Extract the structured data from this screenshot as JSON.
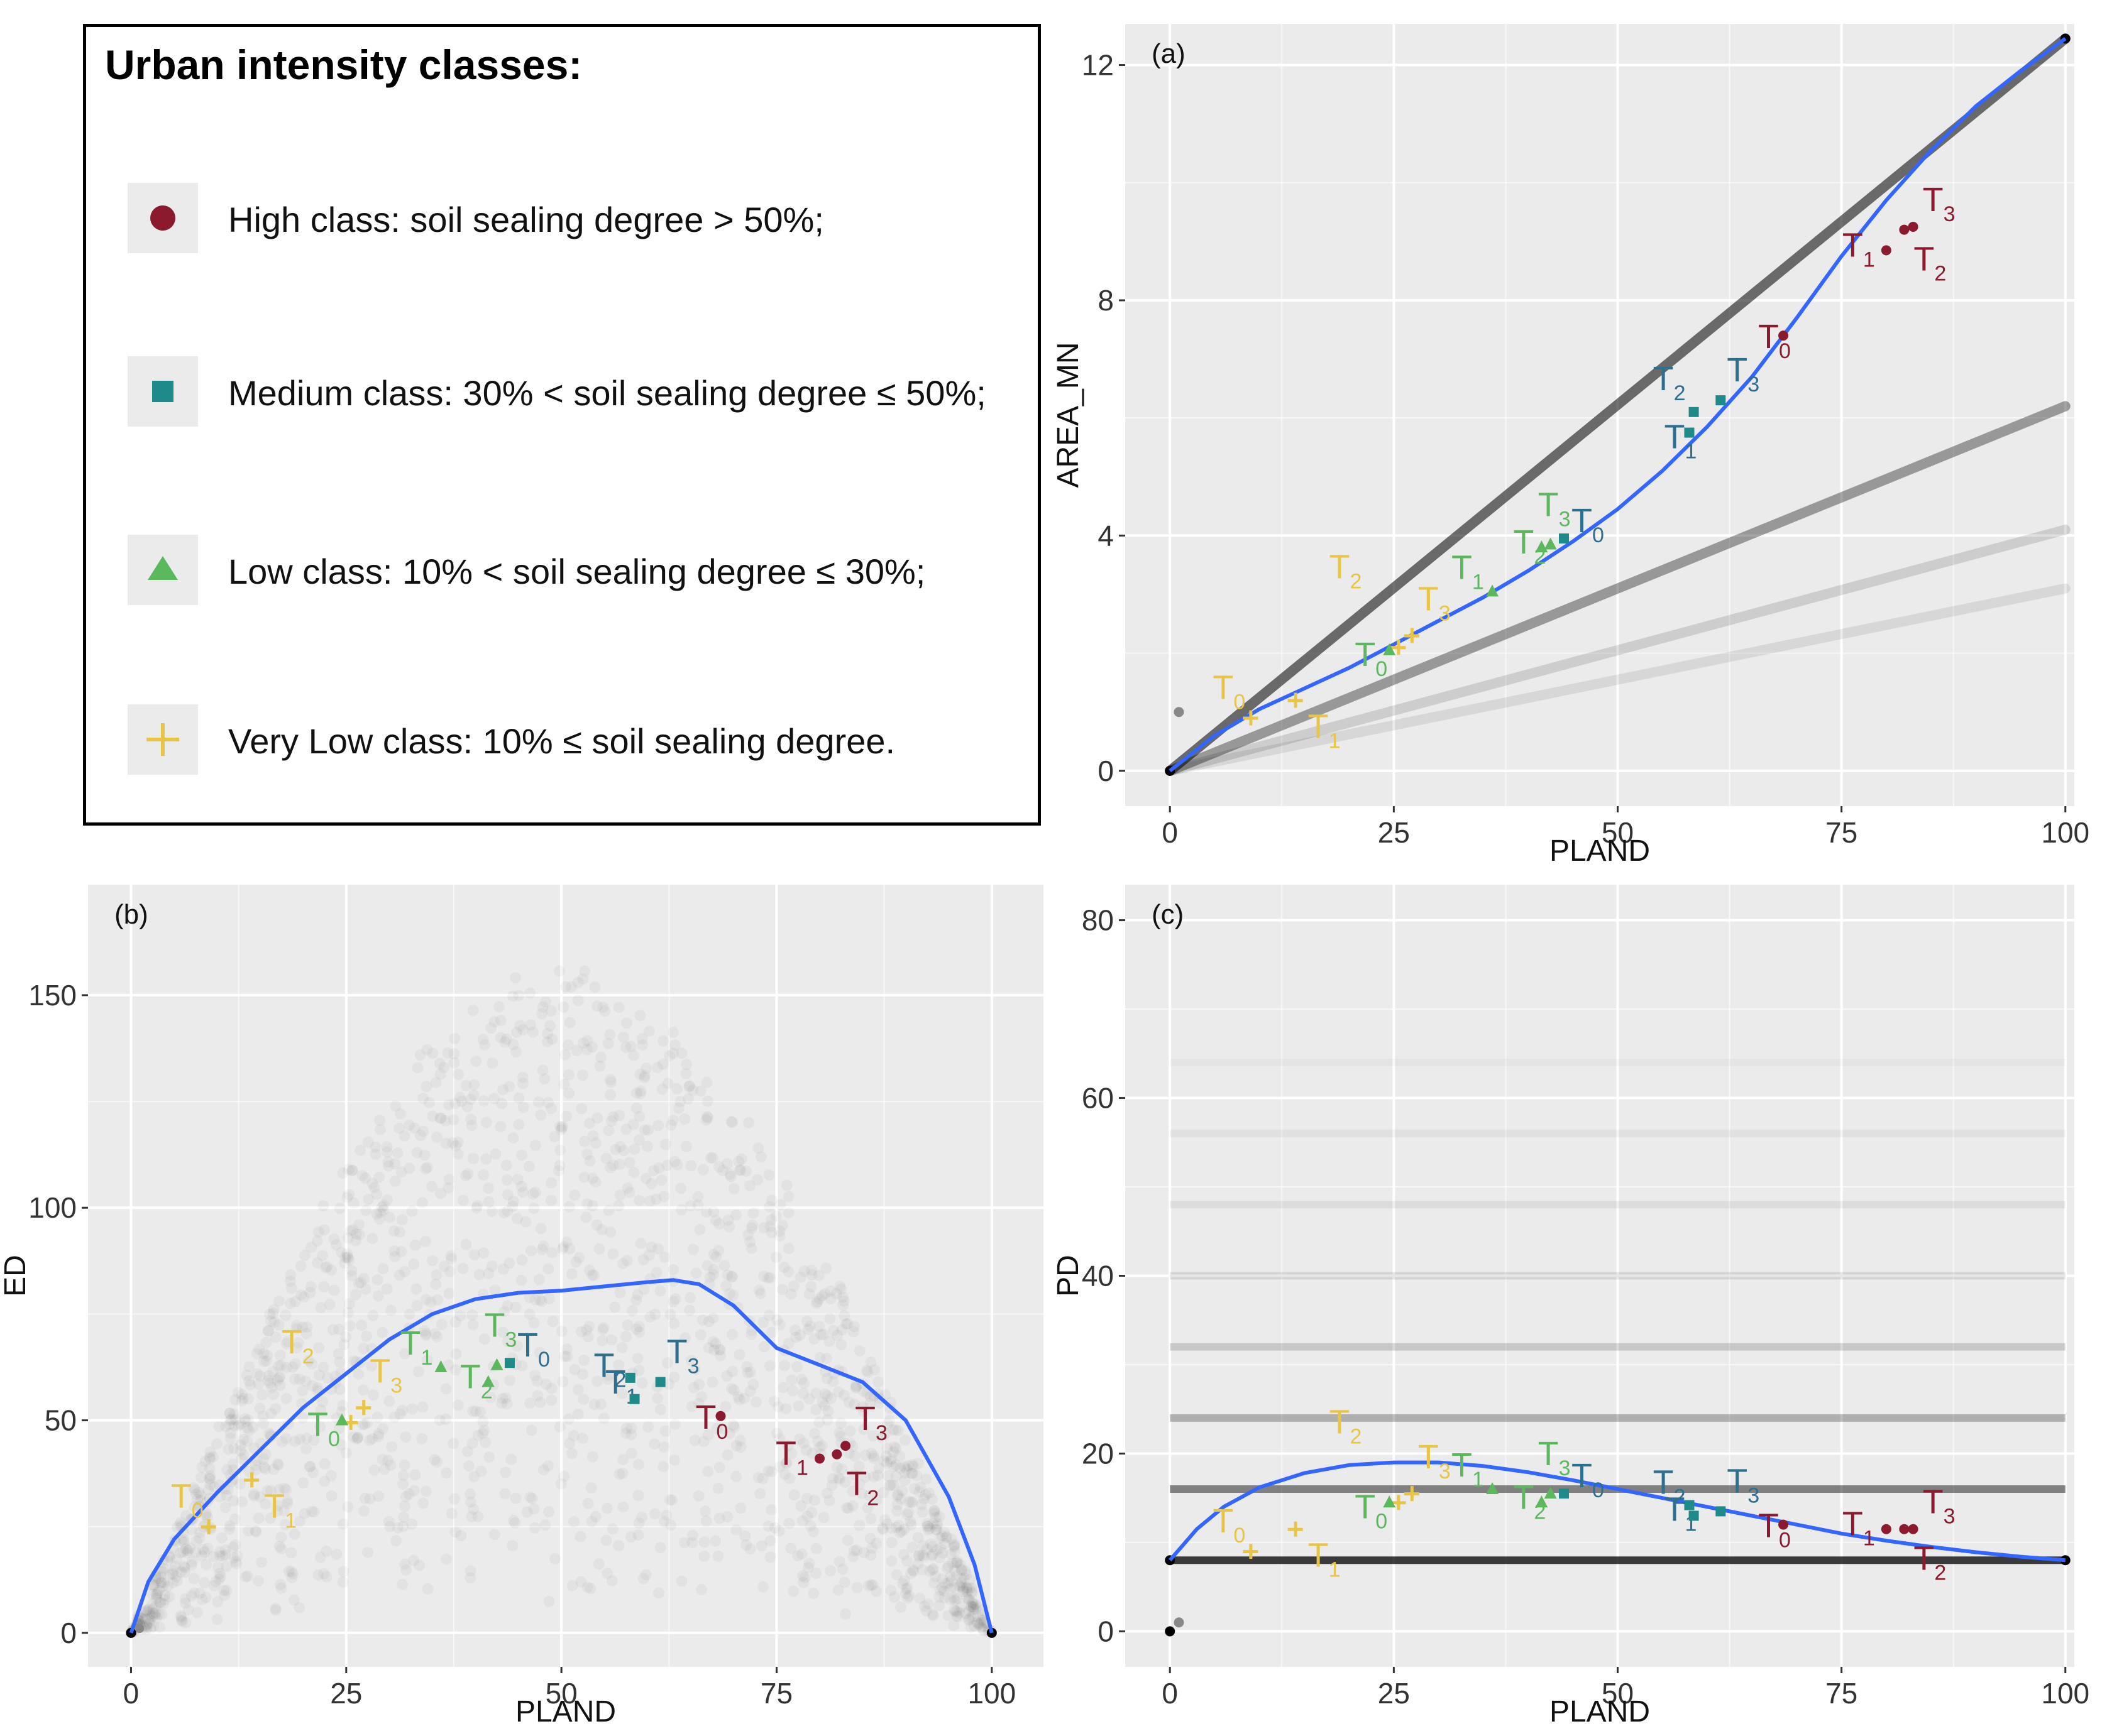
{
  "legend": {
    "title": "Urban intensity classes:",
    "items": [
      {
        "key": "high",
        "label": "High class: soil sealing degree > 50%;",
        "color": "#8B1A2E",
        "shape": "circle-icon"
      },
      {
        "key": "medium",
        "label": "Medium class: 30% <  soil sealing degree ≤ 50%;",
        "color": "#1F8A8A",
        "shape": "square-icon"
      },
      {
        "key": "low",
        "label": "Low class: 10% < soil sealing degree ≤ 30%;",
        "color": "#5CB85C",
        "shape": "triangle-icon"
      },
      {
        "key": "verylow",
        "label": "Very Low class: 10% ≤ soil sealing degree.",
        "color": "#E8C547",
        "shape": "plus-icon"
      }
    ]
  },
  "colors": {
    "panel_bg": "#ebebeb",
    "grid": "#ffffff",
    "fit_line": "#3366FF",
    "scatter": "#000000",
    "label_high": "#8B1A2E",
    "label_medium": "#2E6E8E",
    "label_low": "#5CB85C",
    "label_verylow": "#E8C547"
  },
  "chart_data": [
    {
      "id": "a",
      "tag": "(a)",
      "type": "scatter",
      "xlabel": "PLAND",
      "ylabel": "AREA_MN",
      "xlim": [
        -5,
        101
      ],
      "ylim": [
        -0.6,
        12.7
      ],
      "xticks": [
        0,
        25,
        50,
        75,
        100
      ],
      "yticks": [
        0,
        4,
        8,
        12
      ],
      "xtick_labels": [
        "0",
        "25",
        "50",
        "75",
        "100"
      ],
      "ytick_labels": [
        "0",
        "4",
        "8",
        "12"
      ],
      "fit_line": [
        [
          0,
          0
        ],
        [
          5,
          0.6
        ],
        [
          10,
          1.05
        ],
        [
          15,
          1.4
        ],
        [
          20,
          1.75
        ],
        [
          25,
          2.15
        ],
        [
          30,
          2.55
        ],
        [
          35,
          2.95
        ],
        [
          40,
          3.4
        ],
        [
          45,
          3.9
        ],
        [
          50,
          4.45
        ],
        [
          55,
          5.1
        ],
        [
          60,
          5.85
        ],
        [
          65,
          6.7
        ],
        [
          70,
          7.7
        ],
        [
          75,
          8.75
        ],
        [
          80,
          9.7
        ],
        [
          85,
          10.55
        ],
        [
          90,
          11.3
        ],
        [
          95,
          11.9
        ],
        [
          100,
          12.45
        ]
      ],
      "background_lines": [
        {
          "slope": 0.1245,
          "opacity": 0.55
        },
        {
          "slope": 0.062,
          "opacity": 0.35
        },
        {
          "slope": 0.041,
          "opacity": 0.12
        },
        {
          "slope": 0.031,
          "opacity": 0.08
        }
      ],
      "points": [
        {
          "cls": "verylow",
          "x": 9,
          "y": 0.9,
          "label": "T",
          "sub": "0"
        },
        {
          "cls": "verylow",
          "x": 14,
          "y": 1.2,
          "label": "T",
          "sub": "1"
        },
        {
          "cls": "verylow",
          "x": 25.5,
          "y": 2.1,
          "label": "T",
          "sub": "2"
        },
        {
          "cls": "verylow",
          "x": 27,
          "y": 2.3,
          "label": "T",
          "sub": "3"
        },
        {
          "cls": "low",
          "x": 24.5,
          "y": 2.05,
          "label": "T",
          "sub": "0"
        },
        {
          "cls": "low",
          "x": 36,
          "y": 3.05,
          "label": "T",
          "sub": "1"
        },
        {
          "cls": "low",
          "x": 41.5,
          "y": 3.8,
          "label": "T",
          "sub": "2"
        },
        {
          "cls": "low",
          "x": 42.5,
          "y": 3.85,
          "label": "T",
          "sub": "3"
        },
        {
          "cls": "medium",
          "x": 44,
          "y": 3.95,
          "label": "T",
          "sub": "0"
        },
        {
          "cls": "medium",
          "x": 58,
          "y": 5.75,
          "label": "T",
          "sub": "1"
        },
        {
          "cls": "medium",
          "x": 58.5,
          "y": 6.1,
          "label": "T",
          "sub": "2"
        },
        {
          "cls": "medium",
          "x": 61.5,
          "y": 6.3,
          "label": "T",
          "sub": "3"
        },
        {
          "cls": "high",
          "x": 68.5,
          "y": 7.4,
          "label": "T",
          "sub": "0"
        },
        {
          "cls": "high",
          "x": 80,
          "y": 8.85,
          "label": "T",
          "sub": "1"
        },
        {
          "cls": "high",
          "x": 82,
          "y": 9.2,
          "label": "T",
          "sub": "2"
        },
        {
          "cls": "high",
          "x": 83,
          "y": 9.25,
          "label": "T",
          "sub": "3"
        }
      ]
    },
    {
      "id": "b",
      "tag": "(b)",
      "type": "scatter",
      "xlabel": "PLAND",
      "ylabel": "ED",
      "xlim": [
        -5,
        106
      ],
      "ylim": [
        -8,
        176
      ],
      "xticks": [
        0,
        25,
        50,
        75,
        100
      ],
      "yticks": [
        0,
        50,
        100,
        150
      ],
      "xtick_labels": [
        "0",
        "25",
        "50",
        "75",
        "100"
      ],
      "ytick_labels": [
        "0",
        "50",
        "100",
        "150"
      ],
      "fit_line": [
        [
          0,
          0
        ],
        [
          2,
          12
        ],
        [
          5,
          22
        ],
        [
          10,
          33
        ],
        [
          15,
          43
        ],
        [
          20,
          53
        ],
        [
          25,
          61
        ],
        [
          30,
          69
        ],
        [
          35,
          75
        ],
        [
          40,
          78.5
        ],
        [
          45,
          80
        ],
        [
          50,
          80.5
        ],
        [
          55,
          81.5
        ],
        [
          60,
          82.5
        ],
        [
          63,
          83
        ],
        [
          66,
          82
        ],
        [
          70,
          77
        ],
        [
          75,
          67
        ],
        [
          80,
          63
        ],
        [
          85,
          59
        ],
        [
          90,
          50
        ],
        [
          95,
          32
        ],
        [
          98,
          16
        ],
        [
          100,
          0
        ]
      ],
      "points": [
        {
          "cls": "verylow",
          "x": 9,
          "y": 25,
          "label": "T",
          "sub": "0"
        },
        {
          "cls": "verylow",
          "x": 14,
          "y": 36,
          "label": "T",
          "sub": "1"
        },
        {
          "cls": "verylow",
          "x": 25.5,
          "y": 49.5,
          "label": "T",
          "sub": "2"
        },
        {
          "cls": "verylow",
          "x": 27,
          "y": 53,
          "label": "T",
          "sub": "3"
        },
        {
          "cls": "low",
          "x": 24.5,
          "y": 50,
          "label": "T",
          "sub": "0"
        },
        {
          "cls": "low",
          "x": 36,
          "y": 62.5,
          "label": "T",
          "sub": "1"
        },
        {
          "cls": "low",
          "x": 41.5,
          "y": 59,
          "label": "T",
          "sub": "2"
        },
        {
          "cls": "low",
          "x": 42.5,
          "y": 63,
          "label": "T",
          "sub": "3"
        },
        {
          "cls": "medium",
          "x": 44,
          "y": 63.5,
          "label": "T",
          "sub": "0"
        },
        {
          "cls": "medium",
          "x": 58,
          "y": 60,
          "label": "T",
          "sub": "1"
        },
        {
          "cls": "medium",
          "x": 58.5,
          "y": 55,
          "label": "T",
          "sub": "2"
        },
        {
          "cls": "medium",
          "x": 61.5,
          "y": 59,
          "label": "T",
          "sub": "3"
        },
        {
          "cls": "high",
          "x": 68.5,
          "y": 51,
          "label": "T",
          "sub": "0"
        },
        {
          "cls": "high",
          "x": 80,
          "y": 41,
          "label": "T",
          "sub": "1"
        },
        {
          "cls": "high",
          "x": 82,
          "y": 42,
          "label": "T",
          "sub": "2"
        },
        {
          "cls": "high",
          "x": 83,
          "y": 44,
          "label": "T",
          "sub": "3"
        }
      ]
    },
    {
      "id": "c",
      "tag": "(c)",
      "type": "scatter",
      "xlabel": "PLAND",
      "ylabel": "PD",
      "xlim": [
        -5,
        101
      ],
      "ylim": [
        -4,
        84
      ],
      "xticks": [
        0,
        25,
        50,
        75,
        100
      ],
      "yticks": [
        0,
        20,
        40,
        60,
        80
      ],
      "xtick_labels": [
        "0",
        "25",
        "50",
        "75",
        "100"
      ],
      "ytick_labels": [
        "0",
        "20",
        "40",
        "60",
        "80"
      ],
      "fit_line": [
        [
          0,
          8
        ],
        [
          3,
          11.5
        ],
        [
          6,
          14
        ],
        [
          10,
          16.2
        ],
        [
          15,
          17.8
        ],
        [
          20,
          18.7
        ],
        [
          25,
          19
        ],
        [
          30,
          19
        ],
        [
          35,
          18.6
        ],
        [
          40,
          17.9
        ],
        [
          45,
          17
        ],
        [
          50,
          16
        ],
        [
          55,
          15
        ],
        [
          60,
          14
        ],
        [
          65,
          13
        ],
        [
          70,
          12
        ],
        [
          75,
          11
        ],
        [
          80,
          10.2
        ],
        [
          85,
          9.5
        ],
        [
          90,
          8.9
        ],
        [
          95,
          8.4
        ],
        [
          100,
          8
        ]
      ],
      "bands": [
        {
          "y": 8,
          "opacity": 0.75
        },
        {
          "y": 16,
          "opacity": 0.45
        },
        {
          "y": 24,
          "opacity": 0.25
        },
        {
          "y": 32,
          "opacity": 0.15
        },
        {
          "y": 40,
          "opacity": 0.09
        },
        {
          "y": 48,
          "opacity": 0.06
        },
        {
          "y": 56,
          "opacity": 0.04
        },
        {
          "y": 64,
          "opacity": 0.025
        }
      ],
      "points": [
        {
          "cls": "verylow",
          "x": 9,
          "y": 9,
          "label": "T",
          "sub": "0"
        },
        {
          "cls": "verylow",
          "x": 14,
          "y": 11.5,
          "label": "T",
          "sub": "1"
        },
        {
          "cls": "verylow",
          "x": 25.5,
          "y": 14.5,
          "label": "T",
          "sub": "2"
        },
        {
          "cls": "verylow",
          "x": 27,
          "y": 15.5,
          "label": "T",
          "sub": "3"
        },
        {
          "cls": "low",
          "x": 24.5,
          "y": 14.5,
          "label": "T",
          "sub": "0"
        },
        {
          "cls": "low",
          "x": 36,
          "y": 16,
          "label": "T",
          "sub": "1"
        },
        {
          "cls": "low",
          "x": 41.5,
          "y": 14.5,
          "label": "T",
          "sub": "2"
        },
        {
          "cls": "low",
          "x": 42.5,
          "y": 15.5,
          "label": "T",
          "sub": "3"
        },
        {
          "cls": "medium",
          "x": 44,
          "y": 15.5,
          "label": "T",
          "sub": "0"
        },
        {
          "cls": "medium",
          "x": 58,
          "y": 14.2,
          "label": "T",
          "sub": "1"
        },
        {
          "cls": "medium",
          "x": 58.5,
          "y": 13,
          "label": "T",
          "sub": "2"
        },
        {
          "cls": "medium",
          "x": 61.5,
          "y": 13.5,
          "label": "T",
          "sub": "3"
        },
        {
          "cls": "high",
          "x": 68.5,
          "y": 12,
          "label": "T",
          "sub": "0"
        },
        {
          "cls": "high",
          "x": 80,
          "y": 11.5,
          "label": "T",
          "sub": "1"
        },
        {
          "cls": "high",
          "x": 82,
          "y": 11.5,
          "label": "T",
          "sub": "2"
        },
        {
          "cls": "high",
          "x": 83,
          "y": 11.5,
          "label": "T",
          "sub": "3"
        }
      ]
    }
  ]
}
